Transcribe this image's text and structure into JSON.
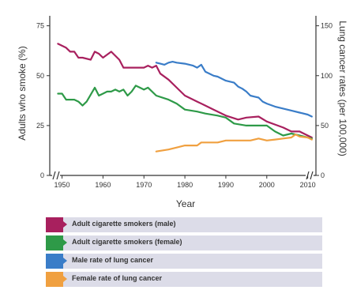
{
  "chart_data": {
    "type": "line",
    "xlabel": "Year",
    "ylabel_left": "Adults who smoke (%)",
    "ylabel_right": "Lung cancer rates (per 100,000)",
    "xlim": [
      1947,
      2012
    ],
    "ylim_left": [
      0,
      80
    ],
    "ylim_right": [
      0,
      160
    ],
    "x_ticks": [
      1950,
      1960,
      1970,
      1980,
      1990,
      2000,
      2010
    ],
    "y_ticks_left": [
      0,
      25,
      50,
      75
    ],
    "y_ticks_right": [
      0,
      50,
      100,
      150
    ],
    "grid": false,
    "legend_position": "bottom",
    "series": [
      {
        "name": "Adult cigarette smokers (male)",
        "axis": "left",
        "color": "#a8205e",
        "points": [
          [
            1949,
            66
          ],
          [
            1951,
            64
          ],
          [
            1952,
            62
          ],
          [
            1953,
            62
          ],
          [
            1954,
            59
          ],
          [
            1955,
            59
          ],
          [
            1957,
            58
          ],
          [
            1958,
            62
          ],
          [
            1959,
            61
          ],
          [
            1960,
            59
          ],
          [
            1962,
            62
          ],
          [
            1964,
            58
          ],
          [
            1965,
            54
          ],
          [
            1966,
            54
          ],
          [
            1968,
            54
          ],
          [
            1970,
            54
          ],
          [
            1971,
            55
          ],
          [
            1972,
            54
          ],
          [
            1973,
            55
          ],
          [
            1974,
            51
          ],
          [
            1976,
            48
          ],
          [
            1978,
            44
          ],
          [
            1980,
            40
          ],
          [
            1983,
            37
          ],
          [
            1985,
            35
          ],
          [
            1987,
            33
          ],
          [
            1990,
            30
          ],
          [
            1993,
            28
          ],
          [
            1995,
            29
          ],
          [
            1998,
            29.5
          ],
          [
            2000,
            27
          ],
          [
            2002,
            25.5
          ],
          [
            2004,
            24
          ],
          [
            2006,
            22
          ],
          [
            2008,
            22
          ],
          [
            2010,
            20
          ],
          [
            2011,
            19
          ]
        ]
      },
      {
        "name": "Adult cigarette smokers (female)",
        "axis": "left",
        "color": "#2e9a48",
        "points": [
          [
            1949,
            41
          ],
          [
            1950,
            41
          ],
          [
            1951,
            38
          ],
          [
            1952,
            38
          ],
          [
            1953,
            38
          ],
          [
            1954,
            37
          ],
          [
            1955,
            35
          ],
          [
            1956,
            37
          ],
          [
            1958,
            44
          ],
          [
            1959,
            40
          ],
          [
            1960,
            41
          ],
          [
            1961,
            42
          ],
          [
            1962,
            42
          ],
          [
            1963,
            43
          ],
          [
            1964,
            42
          ],
          [
            1965,
            43
          ],
          [
            1966,
            40
          ],
          [
            1967,
            42
          ],
          [
            1968,
            45
          ],
          [
            1969,
            44
          ],
          [
            1970,
            43
          ],
          [
            1971,
            44
          ],
          [
            1973,
            40
          ],
          [
            1976,
            38
          ],
          [
            1978,
            36
          ],
          [
            1980,
            33
          ],
          [
            1983,
            32
          ],
          [
            1985,
            31
          ],
          [
            1988,
            30
          ],
          [
            1990,
            29
          ],
          [
            1992,
            26
          ],
          [
            1995,
            25
          ],
          [
            1998,
            25
          ],
          [
            2000,
            25
          ],
          [
            2002,
            22
          ],
          [
            2004,
            20
          ],
          [
            2006,
            21
          ],
          [
            2008,
            20
          ],
          [
            2010,
            19
          ],
          [
            2011,
            18.5
          ]
        ]
      },
      {
        "name": "Male rate of lung cancer",
        "axis": "right",
        "color": "#3a7dc8",
        "points": [
          [
            1973,
            113
          ],
          [
            1974,
            112
          ],
          [
            1975,
            111
          ],
          [
            1976,
            113
          ],
          [
            1977,
            114
          ],
          [
            1978,
            113
          ],
          [
            1980,
            112
          ],
          [
            1982,
            110
          ],
          [
            1983,
            108
          ],
          [
            1984,
            111
          ],
          [
            1985,
            104
          ],
          [
            1986,
            102
          ],
          [
            1987,
            100
          ],
          [
            1988,
            99
          ],
          [
            1990,
            95
          ],
          [
            1992,
            93
          ],
          [
            1993,
            89
          ],
          [
            1994,
            87
          ],
          [
            1995,
            84
          ],
          [
            1996,
            80
          ],
          [
            1997,
            79
          ],
          [
            1998,
            78
          ],
          [
            1999,
            74
          ],
          [
            2000,
            72
          ],
          [
            2002,
            69
          ],
          [
            2004,
            67
          ],
          [
            2006,
            65
          ],
          [
            2008,
            63
          ],
          [
            2010,
            61
          ],
          [
            2011,
            59
          ]
        ]
      },
      {
        "name": "Female rate of lung cancer",
        "axis": "right",
        "color": "#f0a040",
        "points": [
          [
            1973,
            24
          ],
          [
            1976,
            26
          ],
          [
            1978,
            28
          ],
          [
            1980,
            30
          ],
          [
            1982,
            30
          ],
          [
            1983,
            30
          ],
          [
            1984,
            33
          ],
          [
            1986,
            33
          ],
          [
            1988,
            33
          ],
          [
            1990,
            35
          ],
          [
            1992,
            35
          ],
          [
            1994,
            35
          ],
          [
            1996,
            35
          ],
          [
            1998,
            37
          ],
          [
            2000,
            35
          ],
          [
            2002,
            36
          ],
          [
            2004,
            37
          ],
          [
            2006,
            38
          ],
          [
            2007,
            41
          ],
          [
            2008,
            39
          ],
          [
            2010,
            38
          ],
          [
            2011,
            36
          ]
        ]
      }
    ]
  }
}
